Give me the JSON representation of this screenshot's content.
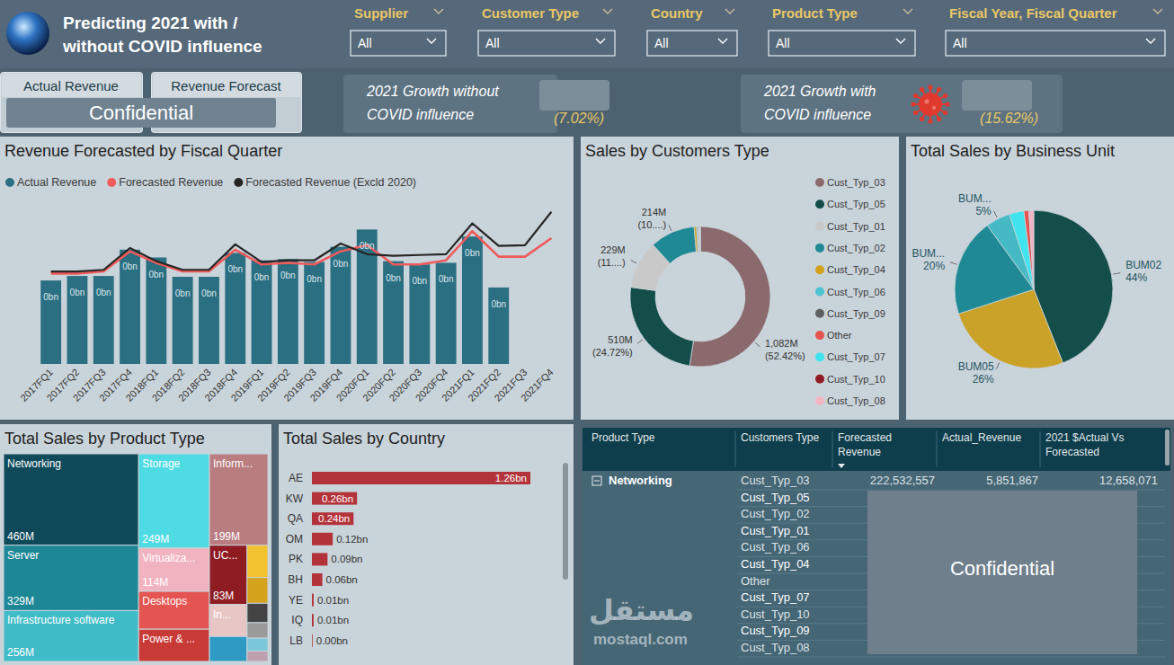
{
  "header": {
    "title_lines": [
      "Predicting 2021 with /",
      "without COVID influence"
    ]
  },
  "slicers": [
    {
      "label": "Supplier",
      "value": "All"
    },
    {
      "label": "Customer Type",
      "value": "All"
    },
    {
      "label": "Country",
      "value": "All"
    },
    {
      "label": "Product Type",
      "value": "All"
    },
    {
      "label": "Fiscal Year, Fiscal Quarter",
      "value": "All"
    }
  ],
  "buttons": [
    "Actual Revenue",
    "Revenue Forecast"
  ],
  "confidential": "Confidential",
  "kpis": [
    {
      "label_lines": [
        "2021 Growth without",
        "COVID influence"
      ],
      "value": "(7.02%)"
    },
    {
      "label_lines": [
        "2021 Growth with",
        "COVID influence"
      ],
      "value": "(15.62%)"
    }
  ],
  "chart_data": [
    {
      "type": "bar",
      "title": "Revenue Forecasted by Fiscal Quarter",
      "categories": [
        "2017FQ1",
        "2017FQ2",
        "2017FQ3",
        "2017FQ4",
        "2018FQ1",
        "2018FQ2",
        "2018FQ3",
        "2018FQ4",
        "2019FQ1",
        "2019FQ2",
        "2019FQ3",
        "2019FQ4",
        "2020FQ1",
        "2020FQ2",
        "2020FQ3",
        "2020FQ4",
        "2021FQ1",
        "2021FQ2",
        "2021FQ3",
        "2021FQ4"
      ],
      "series": [
        {
          "name": "Actual Revenue",
          "type": "bar",
          "color": "#2a6f82",
          "values": [
            0.203,
            0.214,
            0.214,
            0.278,
            0.259,
            0.212,
            0.212,
            0.27,
            0.252,
            0.255,
            0.248,
            0.285,
            0.327,
            0.25,
            0.242,
            0.246,
            0.31,
            0.186,
            null,
            null
          ],
          "value_labels": [
            "0bn",
            "0bn",
            "0bn",
            "0bn",
            "0bn",
            "0bn",
            "0bn",
            "0bn",
            "0bn",
            "0bn",
            "0bn",
            "0bn",
            "0bn",
            "0bn",
            "0bn",
            "0bn",
            "0bn",
            "0bn",
            null,
            null
          ]
        },
        {
          "name": "Forecasted Revenue",
          "type": "line",
          "color": "#ef5a5a",
          "values": [
            0.22,
            0.22,
            0.225,
            0.274,
            0.246,
            0.225,
            0.225,
            0.278,
            0.242,
            0.246,
            0.242,
            0.274,
            0.289,
            0.242,
            0.242,
            0.252,
            0.323,
            0.261,
            0.261,
            0.306
          ]
        },
        {
          "name": "Forecasted Revenue (Excld 2020)",
          "type": "line",
          "color": "#262626",
          "values": [
            0.225,
            0.225,
            0.229,
            0.282,
            0.25,
            0.229,
            0.229,
            0.291,
            0.248,
            0.252,
            0.252,
            0.293,
            0.267,
            0.263,
            0.265,
            0.267,
            0.342,
            0.287,
            0.289,
            0.37
          ]
        }
      ],
      "ylim": [
        0,
        0.4
      ],
      "tick_labels": "x",
      "legend": "top-left",
      "data_labels": true
    },
    {
      "type": "donut",
      "title": "Sales by Customers Type",
      "categories": [
        "Cust_Typ_03",
        "Cust_Typ_05",
        "Cust_Typ_01",
        "Cust_Typ_02",
        "Cust_Typ_04",
        "Cust_Typ_06",
        "Cust_Typ_09",
        "Other",
        "Cust_Typ_07",
        "Cust_Typ_10",
        "Cust_Typ_08"
      ],
      "values": [
        1082,
        510,
        229,
        214,
        12,
        6,
        4,
        3,
        2,
        1,
        1
      ],
      "colors": [
        "#8a6a6c",
        "#134e4a",
        "#c9c9c9",
        "#1f8a95",
        "#d2a21c",
        "#4cc3cf",
        "#5e5e5e",
        "#e8534f",
        "#3fe4ee",
        "#8e1c22",
        "#f3b5c2"
      ],
      "value_labels": [
        "1,082M (52.42%)",
        "510M (24.72%)",
        "229M (11....)",
        "214M (10....)",
        null,
        null,
        null,
        null,
        null,
        null,
        null
      ],
      "data_labels": true,
      "legend": "right"
    },
    {
      "type": "pie",
      "title": "Total Sales by Business Unit",
      "categories": [
        "BUM02",
        "BUM05",
        "BUM...",
        "BUM...",
        null,
        null,
        null
      ],
      "values": [
        44,
        26,
        20,
        5,
        3,
        1,
        1
      ],
      "colors": [
        "#134e4a",
        "#c9a227",
        "#1f8a95",
        "#45b9c4",
        "#3fe4ee",
        "#e8534f",
        "#f3b5c2"
      ],
      "value_labels": [
        "44%",
        "26%",
        "20%",
        "5%",
        null,
        null,
        null
      ],
      "data_labels": true
    },
    {
      "type": "treemap",
      "title": "Total Sales by Product Type",
      "categories": [
        "Networking",
        "Server",
        "Infrastructure software",
        "Storage",
        "Inform...",
        "Virtualiza...",
        "Desktops",
        "Power & ...",
        "UC...",
        "In...",
        null,
        null,
        null,
        null,
        null,
        null,
        null
      ],
      "values": [
        460,
        329,
        256,
        249,
        199,
        114,
        100,
        85,
        83,
        45,
        35,
        25,
        20,
        15,
        12,
        10,
        8
      ],
      "colors": [
        "#0f4a5a",
        "#1d8796",
        "#3fbcc8",
        "#4fdbe3",
        "#b97d80",
        "#f2b3c1",
        "#e45552",
        "#c73a36",
        "#8e1c22",
        "#e9c6c6",
        "#2f9bc4",
        "#f2c230",
        "#d6a41c",
        "#444444",
        "#9a9a9a",
        "#7ac7d9",
        "#bfa0b0"
      ],
      "value_labels": [
        "460M",
        "329M",
        "256M",
        "249M",
        "199M",
        "114M",
        null,
        null,
        "83M",
        null,
        null,
        null,
        null,
        null,
        null,
        null,
        null
      ],
      "data_labels": true
    },
    {
      "type": "bar",
      "title": "Total Sales by Country",
      "orientation": "horizontal",
      "categories": [
        "AE",
        "KW",
        "QA",
        "OM",
        "PK",
        "BH",
        "YE",
        "IQ",
        "LB"
      ],
      "values": [
        1.26,
        0.26,
        0.24,
        0.12,
        0.09,
        0.06,
        0.01,
        0.01,
        0.004
      ],
      "value_labels": [
        "1.26bn",
        "0.26bn",
        "0.24bn",
        "0.12bn",
        "0.09bn",
        "0.06bn",
        "0.01bn",
        "0.01bn",
        "0.00bn"
      ],
      "color": "#b3333a",
      "xlim": [
        0,
        1.26
      ],
      "tick_labels": "y",
      "data_labels": true
    }
  ],
  "table": {
    "columns": [
      "Product Type",
      "Customers Type",
      "Forecasted Revenue",
      "Actual_Revenue",
      "2021 $Actual Vs Forecasted"
    ],
    "group": "Networking",
    "rows": [
      [
        "Cust_Typ_03",
        "222,532,557",
        "5,851,867",
        "12,658,071"
      ],
      [
        "Cust_Typ_05"
      ],
      [
        "Cust_Typ_02"
      ],
      [
        "Cust_Typ_01"
      ],
      [
        "Cust_Typ_06"
      ],
      [
        "Cust_Typ_04"
      ],
      [
        "Other"
      ],
      [
        "Cust_Typ_07"
      ],
      [
        "Cust_Typ_10"
      ],
      [
        "Cust_Typ_09"
      ],
      [
        "Cust_Typ_08"
      ]
    ]
  },
  "watermark": [
    "مستقل",
    "mostaql.com"
  ]
}
